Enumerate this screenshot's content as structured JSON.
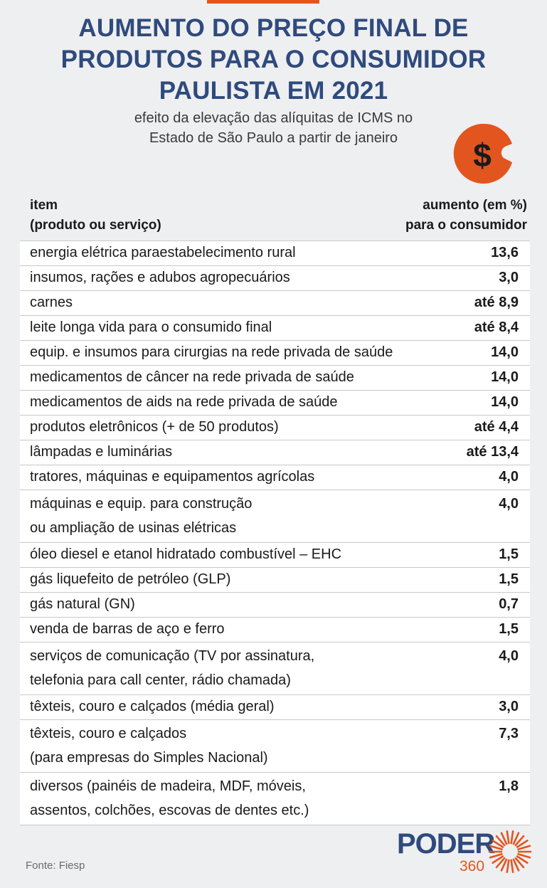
{
  "title": {
    "line1": "AUMENTO DO PREÇO FINAL DE",
    "line2": "PRODUTOS PARA O CONSUMIDOR",
    "line3": "PAULISTA EM 2021"
  },
  "subtitle": {
    "line1": "efeito da elevação das alíquitas de ICMS no",
    "line2": "Estado de São Paulo a partir de janeiro"
  },
  "icon": {
    "name": "dollar-coin-icon",
    "glyph": "$",
    "color": "#e2551f"
  },
  "header": {
    "item_line1": "item",
    "item_line2": "(produto ou serviço)",
    "value_line1": "aumento (em %)",
    "value_line2": "para o consumidor"
  },
  "rows": [
    {
      "l1": "energia elétrica paraestabelecimento rural",
      "v": "13,6"
    },
    {
      "l1": "insumos, rações e adubos agropecuários",
      "v": "3,0"
    },
    {
      "l1": "carnes",
      "v": "até 8,9"
    },
    {
      "l1": "leite longa vida para o consumido final",
      "v": "até 8,4"
    },
    {
      "l1": "equip. e insumos para cirurgias na rede privada de saúde",
      "v": "14,0"
    },
    {
      "l1": "medicamentos de câncer na rede privada de saúde",
      "v": "14,0"
    },
    {
      "l1": "medicamentos de aids na rede privada de saúde",
      "v": "14,0"
    },
    {
      "l1": "produtos eletrônicos (+ de 50 produtos)",
      "v": "até 4,4"
    },
    {
      "l1": "lâmpadas e luminárias",
      "v": "até 13,4"
    },
    {
      "l1": "tratores, máquinas e equipamentos agrícolas",
      "v": "4,0"
    },
    {
      "l1": "máquinas e equip. para construção",
      "l2": "ou ampliação de usinas elétricas",
      "v": "4,0"
    },
    {
      "l1": "óleo diesel e etanol hidratado combustível – EHC",
      "v": "1,5"
    },
    {
      "l1": "gás liquefeito de petróleo (GLP)",
      "v": "1,5"
    },
    {
      "l1": "gás natural (GN)",
      "v": "0,7"
    },
    {
      "l1": "venda de barras de aço e ferro",
      "v": "1,5"
    },
    {
      "l1": "serviços de comunicação (TV por assinatura,",
      "l2": "telefonia para call center, rádio chamada)",
      "v": "4,0"
    },
    {
      "l1": "têxteis, couro e calçados (média geral)",
      "v": "3,0"
    },
    {
      "l1": "têxteis, couro e calçados",
      "l2": "(para empresas do Simples Nacional)",
      "v": "7,3"
    },
    {
      "l1": "diversos (painéis de madeira, MDF, móveis,",
      "l2": "assentos, colchões, escovas de dentes etc.)",
      "v": "1,8"
    }
  ],
  "source": "Fonte: Fiesp",
  "logo": {
    "text": "PODER",
    "number": "360",
    "brand_blue": "#2f4a7d",
    "brand_orange": "#e2551f"
  }
}
